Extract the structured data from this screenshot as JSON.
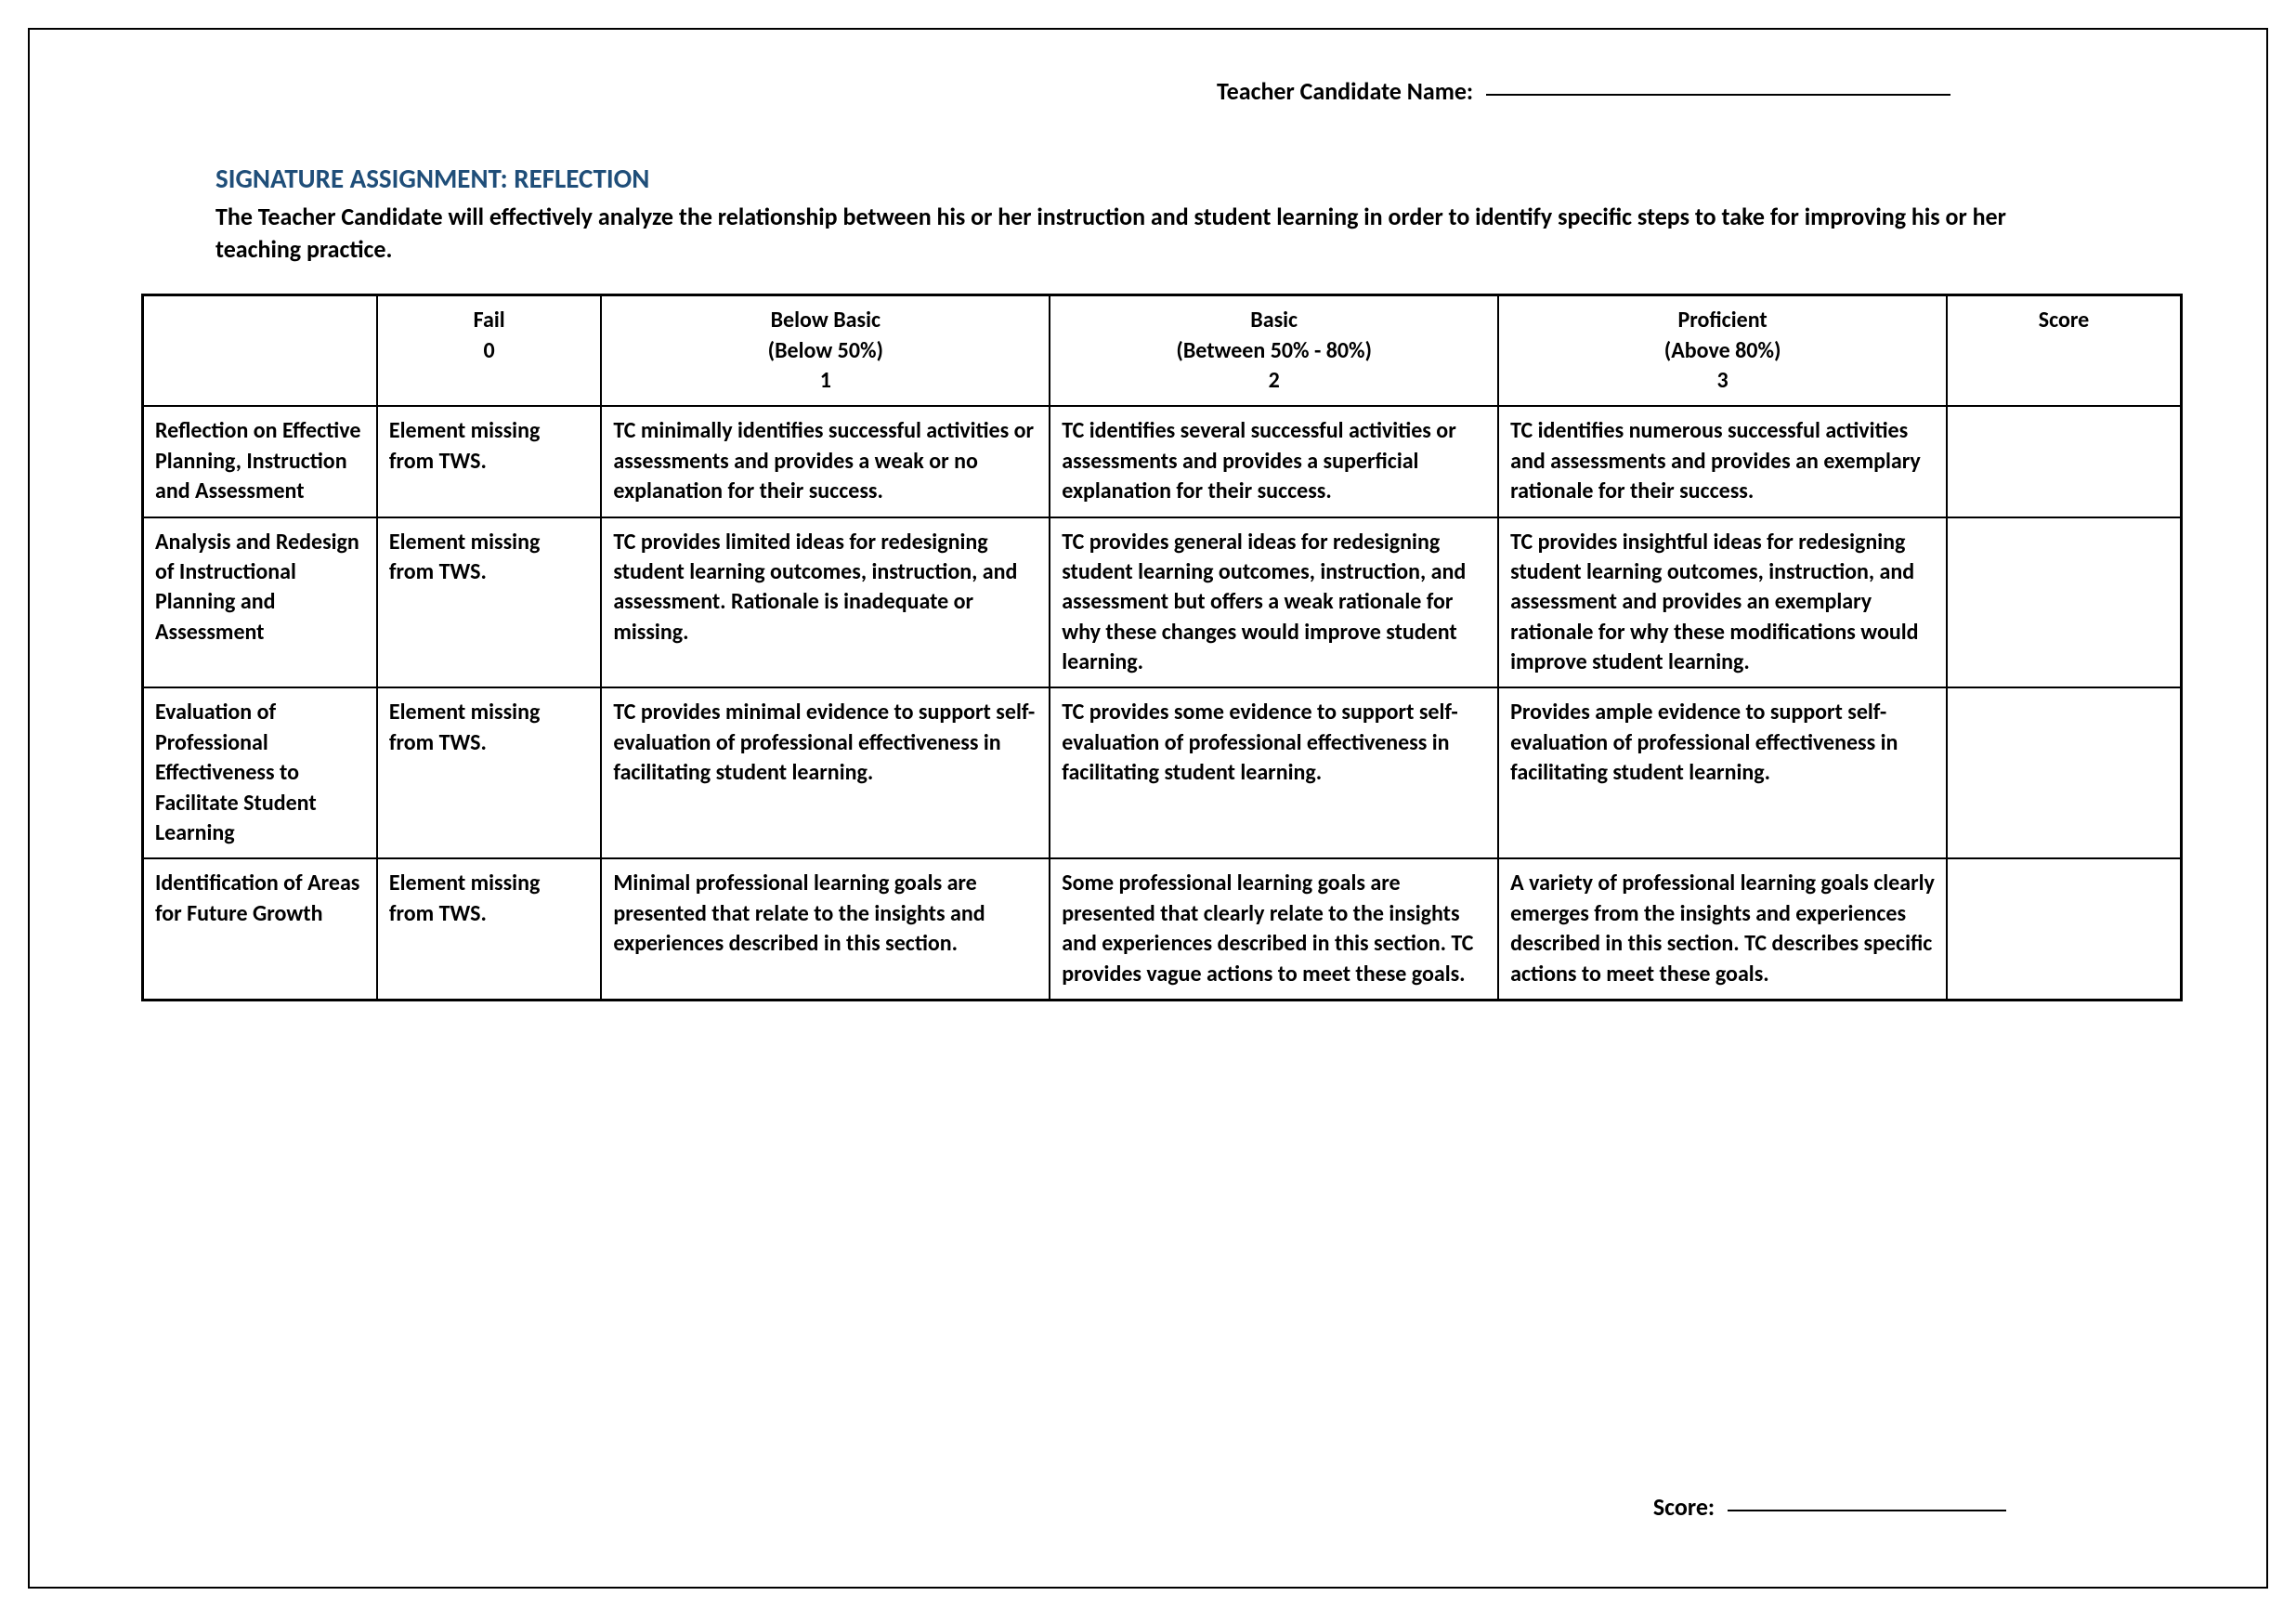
{
  "header": {
    "candidate_label": "Teacher Candidate Name:"
  },
  "title": "SIGNATURE ASSIGNMENT:  REFLECTION",
  "description": "The Teacher Candidate will effectively analyze the relationship between his or her instruction and student learning in order to identify specific steps to take for improving his or her teaching practice.",
  "table": {
    "columns": [
      {
        "label": "",
        "sub": "",
        "num": ""
      },
      {
        "label": "Fail",
        "sub": "",
        "num": "0"
      },
      {
        "label": "Below Basic",
        "sub": "(Below 50%)",
        "num": "1"
      },
      {
        "label": "Basic",
        "sub": "(Between 50% - 80%)",
        "num": "2"
      },
      {
        "label": "Proficient",
        "sub": "(Above 80%)",
        "num": "3"
      },
      {
        "label": "Score",
        "sub": "",
        "num": ""
      }
    ],
    "rows": [
      {
        "criterion": "Reflection on Effective Planning, Instruction and Assessment",
        "fail": "Element missing from TWS.",
        "below": "TC minimally identifies successful activities or assessments and provides a weak or no explanation for their success.",
        "basic": "TC identifies several successful activities or assessments and provides a superficial explanation for their success.",
        "proficient": "TC identifies numerous successful activities and assessments and provides an exemplary rationale for their success.",
        "score": ""
      },
      {
        "criterion": "Analysis and Redesign of Instructional Planning and Assessment",
        "fail": "Element missing from TWS.",
        "below": "TC provides limited ideas for redesigning student learning outcomes, instruction, and assessment. Rationale is inadequate or missing.",
        "basic": "TC provides general ideas for redesigning student learning outcomes, instruction, and assessment but offers a weak rationale for why these changes would improve student learning.",
        "proficient": "TC provides insightful ideas for redesigning student learning outcomes, instruction, and assessment and provides an exemplary rationale for why these modifications would improve student learning.",
        "score": ""
      },
      {
        "criterion": "Evaluation of Professional Effectiveness to Facilitate Student Learning",
        "fail": "Element missing from TWS.",
        "below": "TC provides minimal evidence to support self-evaluation of professional effectiveness in facilitating student learning.",
        "basic": "TC provides some evidence to support self-evaluation of professional effectiveness in facilitating student learning.",
        "proficient": "Provides ample evidence to support self-evaluation of professional effectiveness in facilitating student learning.",
        "score": ""
      },
      {
        "criterion": "Identification of Areas for Future Growth",
        "fail": "Element missing from TWS.",
        "below": "Minimal professional learning goals are presented that relate to the insights and experiences described in this section.",
        "basic": "Some professional learning goals are presented that clearly relate to the insights and experiences described in this section. TC provides vague actions to meet these goals.",
        "proficient": "A variety of professional learning goals clearly emerges from the insights and experiences described in this section. TC describes specific actions to meet these goals.",
        "score": ""
      }
    ]
  },
  "footer": {
    "score_label": "Score:"
  },
  "styling": {
    "title_color": "#1f4e79",
    "text_color": "#000000",
    "border_color": "#000000",
    "background_color": "#ffffff",
    "font_family": "Calibri",
    "title_fontsize": 29,
    "body_fontsize": 26,
    "cell_fontsize": 24,
    "page_border_width": 2,
    "table_outer_border_width": 3,
    "table_inner_border_width": 2,
    "column_widths_pct": [
      11.5,
      11,
      22,
      22,
      22,
      11.5
    ]
  }
}
